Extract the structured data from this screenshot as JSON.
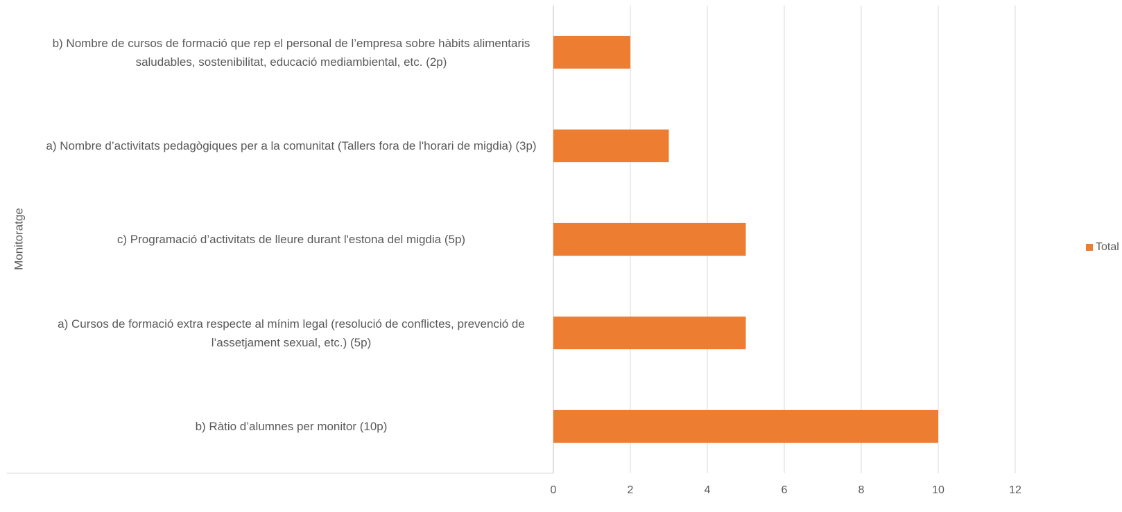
{
  "chart_data": {
    "type": "bar",
    "orientation": "horizontal",
    "y_axis_label": "Monitoratge",
    "categories": [
      "b) Nombre de cursos de formació que rep el personal de l’empresa sobre hàbits alimentaris saludables, sostenibilitat, educació mediambiental, etc. (2p)",
      "a) Nombre d’activitats pedagògiques per a la comunitat (Tallers fora de l'horari de migdia) (3p)",
      "c) Programació d’activitats de lleure durant l'estona del migdia (5p)",
      "a) Cursos de formació extra respecte al mínim legal (resolució de conflictes, prevenció de l’assetjament sexual, etc.) (5p)",
      "b) Ràtio d’alumnes per monitor (10p)"
    ],
    "series": [
      {
        "name": "Total",
        "color": "#ed7d31",
        "values": [
          2,
          3,
          5,
          5,
          10
        ]
      }
    ],
    "xlim": [
      0,
      12
    ],
    "xticks": [
      0,
      2,
      4,
      6,
      8,
      10,
      12
    ],
    "grid": true,
    "legend": "right"
  }
}
